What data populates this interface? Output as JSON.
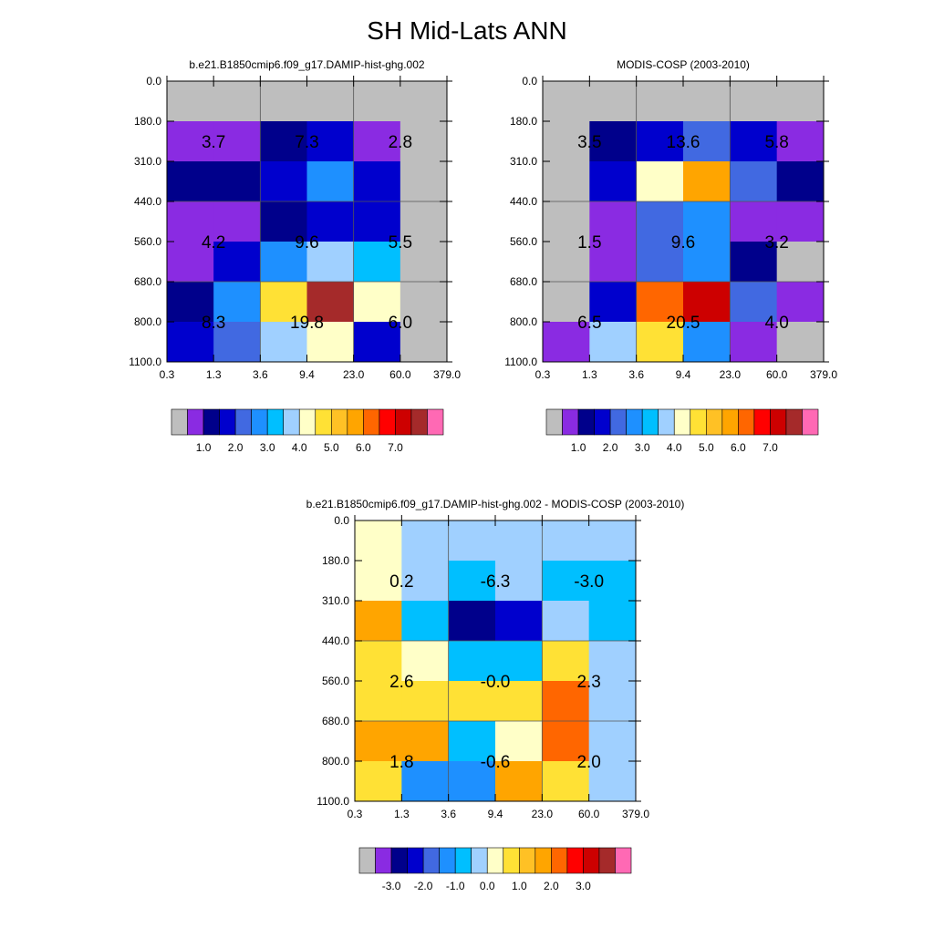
{
  "title": "SH Mid-Lats ANN",
  "chart_data": [
    {
      "type": "heatmap",
      "title": "b.e21.B1850cmip6.f09_g17.DAMIP-hist-ghg.002",
      "x_ticks": [
        "0.3",
        "1.3",
        "3.6",
        "9.4",
        "23.0",
        "60.0",
        "379.0"
      ],
      "y_ticks": [
        "0.0",
        "180.0",
        "310.0",
        "440.0",
        "560.0",
        "680.0",
        "800.0",
        "1100.0"
      ],
      "cells": [
        [
          "#BEBEBE",
          "#BEBEBE",
          "#BEBEBE",
          "#BEBEBE",
          "#BEBEBE",
          "#BEBEBE"
        ],
        [
          "#8A2BE2",
          "#8A2BE2",
          "#00008B",
          "#0000CD",
          "#8A2BE2",
          "#BEBEBE"
        ],
        [
          "#00008B",
          "#00008B",
          "#0000CD",
          "#1E90FF",
          "#0000CD",
          "#BEBEBE"
        ],
        [
          "#8A2BE2",
          "#8A2BE2",
          "#00008B",
          "#0000CD",
          "#0000CD",
          "#BEBEBE"
        ],
        [
          "#8A2BE2",
          "#0000CD",
          "#1E90FF",
          "#A0D0FF",
          "#00BFFF",
          "#BEBEBE"
        ],
        [
          "#00008B",
          "#1E90FF",
          "#FFE135",
          "#A52A2A",
          "#FFFFC8",
          "#BEBEBE"
        ],
        [
          "#0000CD",
          "#4169E1",
          "#A0D0FF",
          "#FFFFC8",
          "#0000CD",
          "#BEBEBE"
        ]
      ],
      "annotations": [
        {
          "value": "3.7",
          "col": 1,
          "row": 1.5
        },
        {
          "value": "7.3",
          "col": 3,
          "row": 1.5
        },
        {
          "value": "2.8",
          "col": 5,
          "row": 1.5
        },
        {
          "value": "4.2",
          "col": 1,
          "row": 4
        },
        {
          "value": "9.6",
          "col": 3,
          "row": 4
        },
        {
          "value": "5.5",
          "col": 5,
          "row": 4
        },
        {
          "value": "8.3",
          "col": 1,
          "row": 6
        },
        {
          "value": "19.8",
          "col": 3,
          "row": 6
        },
        {
          "value": "6.0",
          "col": 5,
          "row": 6
        }
      ],
      "colorbar": {
        "colors": [
          "#BEBEBE",
          "#8A2BE2",
          "#00008B",
          "#0000CD",
          "#4169E1",
          "#1E90FF",
          "#00BFFF",
          "#A0D0FF",
          "#FFFFC8",
          "#FFE135",
          "#FFC125",
          "#FFA500",
          "#FF6600",
          "#FF0000",
          "#CD0000",
          "#A52A2A",
          "#FF69B4"
        ],
        "labels": [
          "1.0",
          "2.0",
          "3.0",
          "4.0",
          "5.0",
          "6.0",
          "7.0"
        ],
        "label_box_start": 2
      }
    },
    {
      "type": "heatmap",
      "title": "MODIS-COSP (2003-2010)",
      "x_ticks": [
        "0.3",
        "1.3",
        "3.6",
        "9.4",
        "23.0",
        "60.0",
        "379.0"
      ],
      "y_ticks": [
        "0.0",
        "180.0",
        "310.0",
        "440.0",
        "560.0",
        "680.0",
        "800.0",
        "1100.0"
      ],
      "cells": [
        [
          "#BEBEBE",
          "#BEBEBE",
          "#BEBEBE",
          "#BEBEBE",
          "#BEBEBE",
          "#BEBEBE"
        ],
        [
          "#BEBEBE",
          "#00008B",
          "#0000CD",
          "#4169E1",
          "#0000CD",
          "#8A2BE2"
        ],
        [
          "#BEBEBE",
          "#0000CD",
          "#FFFFC8",
          "#FFA500",
          "#4169E1",
          "#00008B"
        ],
        [
          "#BEBEBE",
          "#8A2BE2",
          "#4169E1",
          "#1E90FF",
          "#8A2BE2",
          "#8A2BE2"
        ],
        [
          "#BEBEBE",
          "#8A2BE2",
          "#4169E1",
          "#1E90FF",
          "#00008B",
          "#BEBEBE"
        ],
        [
          "#BEBEBE",
          "#0000CD",
          "#FF6600",
          "#CD0000",
          "#4169E1",
          "#8A2BE2"
        ],
        [
          "#8A2BE2",
          "#A0D0FF",
          "#FFE135",
          "#1E90FF",
          "#8A2BE2",
          "#BEBEBE"
        ]
      ],
      "annotations": [
        {
          "value": "3.5",
          "col": 1,
          "row": 1.5
        },
        {
          "value": "13.6",
          "col": 3,
          "row": 1.5
        },
        {
          "value": "5.8",
          "col": 5,
          "row": 1.5
        },
        {
          "value": "1.5",
          "col": 1,
          "row": 4
        },
        {
          "value": "9.6",
          "col": 3,
          "row": 4
        },
        {
          "value": "3.2",
          "col": 5,
          "row": 4
        },
        {
          "value": "6.5",
          "col": 1,
          "row": 6
        },
        {
          "value": "20.5",
          "col": 3,
          "row": 6
        },
        {
          "value": "4.0",
          "col": 5,
          "row": 6
        }
      ],
      "colorbar": {
        "colors": [
          "#BEBEBE",
          "#8A2BE2",
          "#00008B",
          "#0000CD",
          "#4169E1",
          "#1E90FF",
          "#00BFFF",
          "#A0D0FF",
          "#FFFFC8",
          "#FFE135",
          "#FFC125",
          "#FFA500",
          "#FF6600",
          "#FF0000",
          "#CD0000",
          "#A52A2A",
          "#FF69B4"
        ],
        "labels": [
          "1.0",
          "2.0",
          "3.0",
          "4.0",
          "5.0",
          "6.0",
          "7.0"
        ],
        "label_box_start": 2
      }
    },
    {
      "type": "heatmap",
      "title": "b.e21.B1850cmip6.f09_g17.DAMIP-hist-ghg.002 - MODIS-COSP (2003-2010)",
      "x_ticks": [
        "0.3",
        "1.3",
        "3.6",
        "9.4",
        "23.0",
        "60.0",
        "379.0"
      ],
      "y_ticks": [
        "0.0",
        "180.0",
        "310.0",
        "440.0",
        "560.0",
        "680.0",
        "800.0",
        "1100.0"
      ],
      "cells": [
        [
          "#FFFFC8",
          "#A0D0FF",
          "#A0D0FF",
          "#A0D0FF",
          "#A0D0FF",
          "#A0D0FF"
        ],
        [
          "#FFFFC8",
          "#A0D0FF",
          "#00BFFF",
          "#A0D0FF",
          "#00BFFF",
          "#00BFFF"
        ],
        [
          "#FFA500",
          "#00BFFF",
          "#00008B",
          "#0000CD",
          "#A0D0FF",
          "#00BFFF"
        ],
        [
          "#FFE135",
          "#FFFFC8",
          "#00BFFF",
          "#00BFFF",
          "#FFE135",
          "#A0D0FF"
        ],
        [
          "#FFE135",
          "#FFE135",
          "#FFE135",
          "#FFE135",
          "#FF6600",
          "#A0D0FF"
        ],
        [
          "#FFA500",
          "#FFA500",
          "#00BFFF",
          "#FFFFC8",
          "#FF6600",
          "#A0D0FF"
        ],
        [
          "#FFE135",
          "#1E90FF",
          "#1E90FF",
          "#FFA500",
          "#FFE135",
          "#A0D0FF"
        ]
      ],
      "annotations": [
        {
          "value": "0.2",
          "col": 1,
          "row": 1.5
        },
        {
          "value": "-6.3",
          "col": 3,
          "row": 1.5
        },
        {
          "value": "-3.0",
          "col": 5,
          "row": 1.5
        },
        {
          "value": "2.6",
          "col": 1,
          "row": 4
        },
        {
          "value": "-0.0",
          "col": 3,
          "row": 4
        },
        {
          "value": "2.3",
          "col": 5,
          "row": 4
        },
        {
          "value": "1.8",
          "col": 1,
          "row": 6
        },
        {
          "value": "-0.6",
          "col": 3,
          "row": 6
        },
        {
          "value": "2.0",
          "col": 5,
          "row": 6
        }
      ],
      "colorbar": {
        "colors": [
          "#BEBEBE",
          "#8A2BE2",
          "#00008B",
          "#0000CD",
          "#4169E1",
          "#1E90FF",
          "#00BFFF",
          "#A0D0FF",
          "#FFFFC8",
          "#FFE135",
          "#FFC125",
          "#FFA500",
          "#FF6600",
          "#FF0000",
          "#CD0000",
          "#A52A2A",
          "#FF69B4"
        ],
        "labels": [
          "-3.0",
          "-2.0",
          "-1.0",
          "0.0",
          "1.0",
          "2.0",
          "3.0"
        ],
        "label_box_start": 2
      }
    }
  ]
}
